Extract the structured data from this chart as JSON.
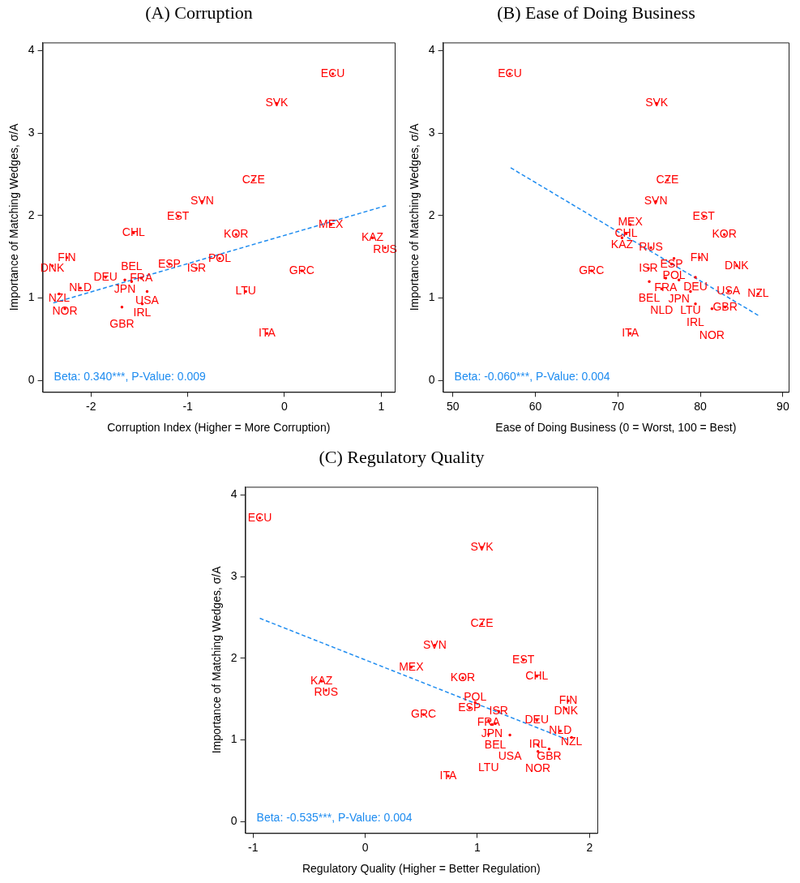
{
  "chart_data": [
    {
      "type": "scatter",
      "title": "(A) Corruption",
      "xlabel": "Corruption Index (Higher = More Corruption)",
      "ylabel": "Importance of Matching Wedges, σ/A",
      "xlim": [
        -2.5,
        1.14
      ],
      "xticks": [
        -2,
        -1,
        0,
        1
      ],
      "ylim": [
        -0.14,
        4.1
      ],
      "yticks": [
        0,
        1,
        2,
        3,
        4
      ],
      "annotations": [
        "Beta: 0.340***, P-Value: 0.009"
      ],
      "series": [
        {
          "type": "scatter",
          "color": "#ff0000",
          "x": [
            0.5,
            -0.08,
            -0.32,
            -0.85,
            -1.1,
            -1.56,
            -0.5,
            0.48,
            0.91,
            1.04,
            -2.25,
            -2.4,
            -1.19,
            -0.67,
            -0.91,
            0.18,
            -1.85,
            -1.48,
            -1.65,
            -1.58,
            -2.11,
            -2.33,
            -1.42,
            -0.4,
            -1.47,
            -1.68,
            -2.27,
            -0.18
          ],
          "values": [
            3.72,
            3.36,
            2.43,
            2.17,
            1.99,
            1.79,
            1.77,
            1.89,
            1.73,
            1.61,
            1.49,
            1.39,
            1.41,
            1.48,
            1.36,
            1.33,
            1.25,
            1.24,
            1.22,
            1.2,
            1.12,
            1.05,
            1.08,
            1.08,
            0.93,
            0.89,
            0.87,
            0.57
          ],
          "value_labels": [
            "ECU",
            "SVK",
            "CZE",
            "SVN",
            "EST",
            "CHL",
            "KOR",
            "MEX",
            "KAZ",
            "RUS",
            "FIN",
            "DNK",
            "ESP",
            "POL",
            "ISR",
            "GRC",
            "DEU",
            "FRA",
            "JPN",
            "BEL",
            "NLD",
            "NZL",
            "USA",
            "LTU",
            "IRL",
            "GBR",
            "NOR",
            "ITA"
          ]
        },
        {
          "type": "line",
          "color": "#1e8cf0",
          "line_style": "dashed",
          "x": [
            -2.39,
            1.05
          ],
          "values": [
            0.94,
            2.12
          ]
        }
      ]
    },
    {
      "type": "scatter",
      "title": "(B) Ease of Doing Business",
      "xlabel": "Ease of Doing Business (0 = Worst, 100 = Best)",
      "ylabel": "Importance of Matching Wedges, σ/A",
      "xlim": [
        48.8,
        90.7
      ],
      "xticks": [
        50,
        60,
        70,
        80,
        90
      ],
      "ylim": [
        -0.14,
        4.1
      ],
      "yticks": [
        0,
        1,
        2,
        3,
        4
      ],
      "annotations": [
        "Beta: -0.060***, P-Value: 0.004"
      ],
      "series": [
        {
          "type": "scatter",
          "color": "#ff0000",
          "x": [
            56.9,
            74.7,
            76.0,
            74.6,
            80.4,
            71.0,
            82.9,
            71.5,
            70.5,
            74.0,
            79.9,
            84.4,
            76.5,
            76.8,
            73.7,
            66.8,
            79.4,
            75.8,
            77.4,
            73.8,
            75.3,
            87.0,
            83.4,
            78.8,
            79.4,
            83.0,
            81.4,
            71.5
          ],
          "values": [
            3.72,
            3.36,
            2.43,
            2.17,
            1.99,
            1.78,
            1.77,
            1.89,
            1.73,
            1.61,
            1.49,
            1.39,
            1.41,
            1.48,
            1.36,
            1.33,
            1.25,
            1.24,
            1.22,
            1.2,
            1.11,
            1.05,
            1.08,
            1.08,
            0.93,
            0.89,
            0.87,
            0.57
          ],
          "value_labels": [
            "ECU",
            "SVK",
            "CZE",
            "SVN",
            "EST",
            "CHL",
            "KOR",
            "MEX",
            "KAZ",
            "RUS",
            "FIN",
            "DNK",
            "ESP",
            "POL",
            "ISR",
            "GRC",
            "DEU",
            "FRA",
            "JPN",
            "BEL",
            "NLD",
            "NZL",
            "USA",
            "LTU",
            "IRL",
            "GBR",
            "NOR",
            "ITA"
          ]
        },
        {
          "type": "line",
          "color": "#1e8cf0",
          "line_style": "dashed",
          "x": [
            57.0,
            87.0
          ],
          "values": [
            2.58,
            0.79
          ]
        }
      ]
    },
    {
      "type": "scatter",
      "title": "(C) Regulatory Quality",
      "xlabel": "Regulatory Quality (Higher = Better Regulation)",
      "ylabel": "Importance of Matching Wedges, σ/A",
      "xlim": [
        -1.07,
        2.07
      ],
      "xticks": [
        -1,
        0,
        1,
        2
      ],
      "ylim": [
        -0.14,
        4.1
      ],
      "yticks": [
        0,
        1,
        2,
        3,
        4
      ],
      "annotations": [
        "Beta: -0.535***, P-Value: 0.004"
      ],
      "series": [
        {
          "type": "scatter",
          "color": "#ff0000",
          "x": [
            -0.94,
            1.04,
            1.04,
            0.62,
            1.41,
            1.53,
            0.87,
            0.41,
            -0.39,
            -0.35,
            1.81,
            1.79,
            0.93,
            0.98,
            1.19,
            0.52,
            1.53,
            1.1,
            1.13,
            1.16,
            1.74,
            1.84,
            1.29,
            1.1,
            1.54,
            1.64,
            1.54,
            0.74
          ],
          "values": [
            3.72,
            3.36,
            2.42,
            2.16,
            1.98,
            1.78,
            1.76,
            1.89,
            1.72,
            1.61,
            1.48,
            1.38,
            1.39,
            1.46,
            1.35,
            1.31,
            1.24,
            1.24,
            1.19,
            1.2,
            1.11,
            1.03,
            1.06,
            1.07,
            0.94,
            0.89,
            0.86,
            0.56
          ],
          "value_labels": [
            "ECU",
            "SVK",
            "CZE",
            "SVN",
            "EST",
            "CHL",
            "KOR",
            "MEX",
            "KAZ",
            "RUS",
            "FIN",
            "DNK",
            "ESP",
            "POL",
            "ISR",
            "GRC",
            "DEU",
            "FRA",
            "JPN",
            "BEL",
            "NLD",
            "NZL",
            "USA",
            "LTU",
            "IRL",
            "GBR",
            "NOR",
            "ITA"
          ]
        },
        {
          "type": "line",
          "color": "#1e8cf0",
          "line_style": "dashed",
          "x": [
            -0.94,
            1.81
          ],
          "values": [
            2.49,
            1.0
          ]
        }
      ]
    }
  ]
}
